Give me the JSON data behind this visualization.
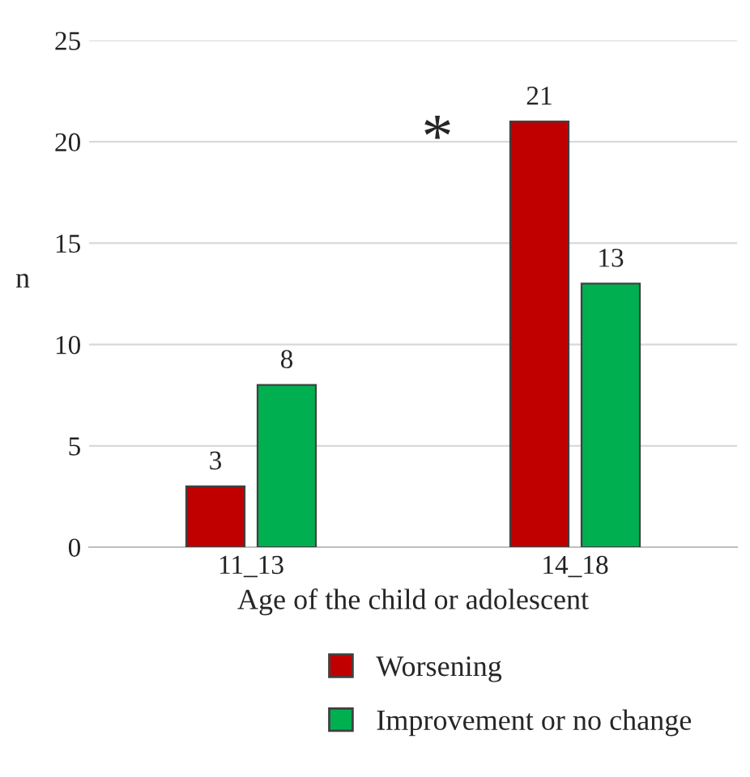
{
  "chart_data": {
    "type": "bar",
    "xlabel": "Age of the child or adolescent",
    "ylabel": "n",
    "categories": [
      "11_13",
      "14_18"
    ],
    "series": [
      {
        "name": "Worsening",
        "color": "#c00000",
        "values": [
          3,
          21
        ]
      },
      {
        "name": "Improvement or no change",
        "color": "#00b050",
        "values": [
          8,
          13
        ]
      }
    ],
    "ylim": [
      0,
      25
    ],
    "yticks": [
      0,
      5,
      10,
      15,
      20,
      25
    ],
    "grid": "y",
    "legend": "bottom",
    "data_labels": true,
    "annotations": [
      "*"
    ]
  }
}
